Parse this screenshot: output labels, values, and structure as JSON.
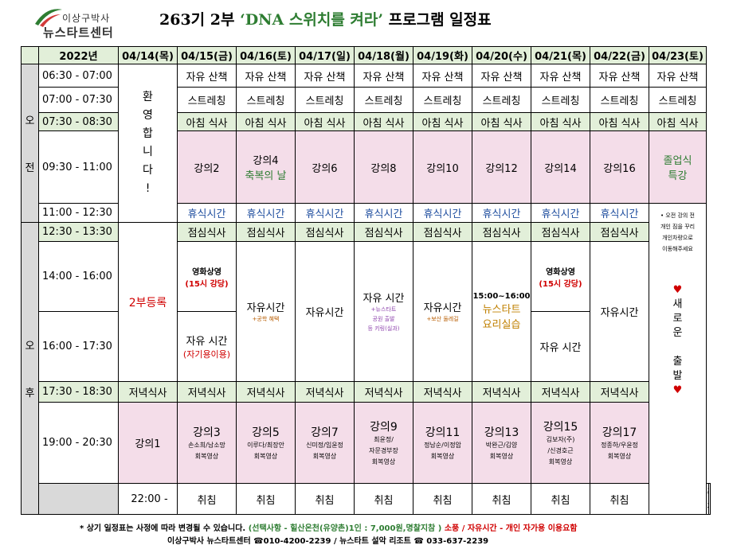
{
  "logo": {
    "line1": "이상구박사",
    "line2": "뉴스타트센터"
  },
  "title": {
    "prefix": "263기 2부 ",
    "highlight": "‘DNA 스위치를 켜라’",
    "suffix": " 프로그램 일정표"
  },
  "header": {
    "year": "2022년",
    "dates": [
      "04/14(목)",
      "04/15(금)",
      "04/16(토)",
      "04/17(일)",
      "04/18(월)",
      "04/19(화)",
      "04/20(수)",
      "04/21(목)",
      "04/22(금)",
      "04/23(토)"
    ]
  },
  "periods": {
    "am_1": "오",
    "am_2": "전",
    "pm_1": "오",
    "pm_2": "후"
  },
  "times": [
    "06:30 - 07:00",
    "07:00 - 07:30",
    "07:30 - 08:30",
    "09:30 - 11:00",
    "11:00 - 12:30",
    "12:30 - 13:30",
    "14:00 - 16:00",
    "16:00 - 17:30",
    "17:30 - 18:30",
    "19:00 - 20:30",
    "22:00 -"
  ],
  "activities": {
    "walk": "자유 산책",
    "stretch": "스트레칭",
    "breakfast": "아침 식사",
    "rest": "휴식시간",
    "lunch": "점심식사",
    "dinner": "저녁식사",
    "sleep": "취침"
  },
  "welcome": [
    "환",
    "영",
    "합",
    "니",
    "다",
    "!"
  ],
  "registration": "2부등록",
  "lectures_am": [
    "강의2",
    "강의4",
    "강의6",
    "강의8",
    "강의10",
    "강의12",
    "강의14",
    "강의16"
  ],
  "lecture4_sub": "축복의 날",
  "graduation": [
    "졸업식",
    "특강"
  ],
  "side_note": [
    "• 오전 강의 전",
    "개인 짐을 꾸리",
    "개인차량으로",
    "이동해주세요"
  ],
  "side_message": [
    "♥",
    "새",
    "로",
    "운",
    "",
    "출",
    "발",
    "♥"
  ],
  "pm": {
    "fri_movie": "영화상영",
    "fri_movie_sub": "(15시 강당)",
    "fri_free": "자유 시간",
    "fri_free_sub": "(자기용이용)",
    "sat_free": "자유시간",
    "sat_free_sub": "+공학 혜택",
    "sun_free": "자유시간",
    "mon_free": "자유 시간",
    "mon_sub1": "+뉴스타트",
    "mon_sub2": "공원 출발",
    "mon_sub3": "등 키링(실과)",
    "tue_free": "자유시간",
    "tue_sub": "+보산 둘레길",
    "wed_time": "15:00~16:00",
    "wed_title1": "뉴스타트",
    "wed_title2": "요리실습",
    "thu_movie": "영화상영",
    "thu_movie_sub": "(15시 강당)",
    "thu_free": "자유 시간",
    "fri2_free": "자유시간"
  },
  "evening": [
    {
      "title": "강의1",
      "lines": []
    },
    {
      "title": "강의3",
      "lines": [
        "손소희/남소망",
        "회복영상"
      ]
    },
    {
      "title": "강의5",
      "lines": [
        "이루다/최장안",
        "회복영상"
      ]
    },
    {
      "title": "강의7",
      "lines": [
        "신미정/임윤정",
        "회복영상"
      ]
    },
    {
      "title": "강의9",
      "lines": [
        "최윤정/",
        "자문경부장",
        "회복영상"
      ]
    },
    {
      "title": "강의11",
      "lines": [
        "정남순/이정암",
        "회복영상"
      ]
    },
    {
      "title": "강의13",
      "lines": [
        "박완근/김양",
        "회복영상"
      ]
    },
    {
      "title": "강의15",
      "lines": [
        "김보자(주)",
        "/신경호근",
        "회복영상"
      ]
    },
    {
      "title": "강의17",
      "lines": [
        "정종하/우윤정",
        "회복영상"
      ]
    }
  ],
  "footer": {
    "line1_black": "* 상기 일정표는 사정에 따라 변경될 수 있습니다.",
    "line1_green": "(선택사항 - 힐산온천(유양촌)1인 : 7,000원,명찰지참 )",
    "line1_red": "소풍 / 자유시간 - 개인 자가용 이용요함",
    "line2": "이상구박사 뉴스타트센터 ☎010-4200-2239 / 뉴스타트 설악 리조트 ☎ 033-637-2239"
  },
  "colors": {
    "header_bg": "#e2efd9",
    "lecture_bg": "#f4dde9",
    "accent_green": "#2e7d32",
    "accent_blue": "#1f4e9f",
    "accent_red": "#d00000"
  }
}
